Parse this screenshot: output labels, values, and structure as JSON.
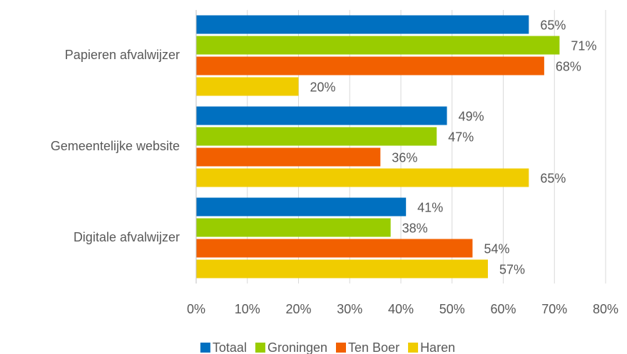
{
  "chart_data": {
    "type": "bar",
    "orientation": "horizontal",
    "categories": [
      "Papieren afvalwijzer",
      "Gemeentelijke website",
      "Digitale afvalwijzer"
    ],
    "series": [
      {
        "name": "Totaal",
        "color": "#0070c0",
        "values": [
          65,
          49,
          41
        ],
        "value_labels": [
          "65%",
          "49%",
          "41%"
        ]
      },
      {
        "name": "Groningen",
        "color": "#99cc00",
        "values": [
          71,
          47,
          38
        ],
        "value_labels": [
          "71%",
          "47%",
          "38%"
        ]
      },
      {
        "name": "Ten Boer",
        "color": "#f26000",
        "values": [
          68,
          36,
          54
        ],
        "value_labels": [
          "68%",
          "36%",
          "54%"
        ]
      },
      {
        "name": "Haren",
        "color": "#f0cc00",
        "values": [
          20,
          65,
          57
        ],
        "value_labels": [
          "20%",
          "65%",
          "57%"
        ]
      }
    ],
    "xlim": [
      0,
      80
    ],
    "xticks": [
      {
        "value": 0,
        "label": "0%"
      },
      {
        "value": 10,
        "label": "10%"
      },
      {
        "value": 20,
        "label": "20%"
      },
      {
        "value": 30,
        "label": "30%"
      },
      {
        "value": 40,
        "label": "40%"
      },
      {
        "value": 50,
        "label": "50%"
      },
      {
        "value": 60,
        "label": "60%"
      },
      {
        "value": 70,
        "label": "70%"
      },
      {
        "value": 80,
        "label": "80%"
      }
    ],
    "grid": true,
    "legend": "bottom"
  }
}
